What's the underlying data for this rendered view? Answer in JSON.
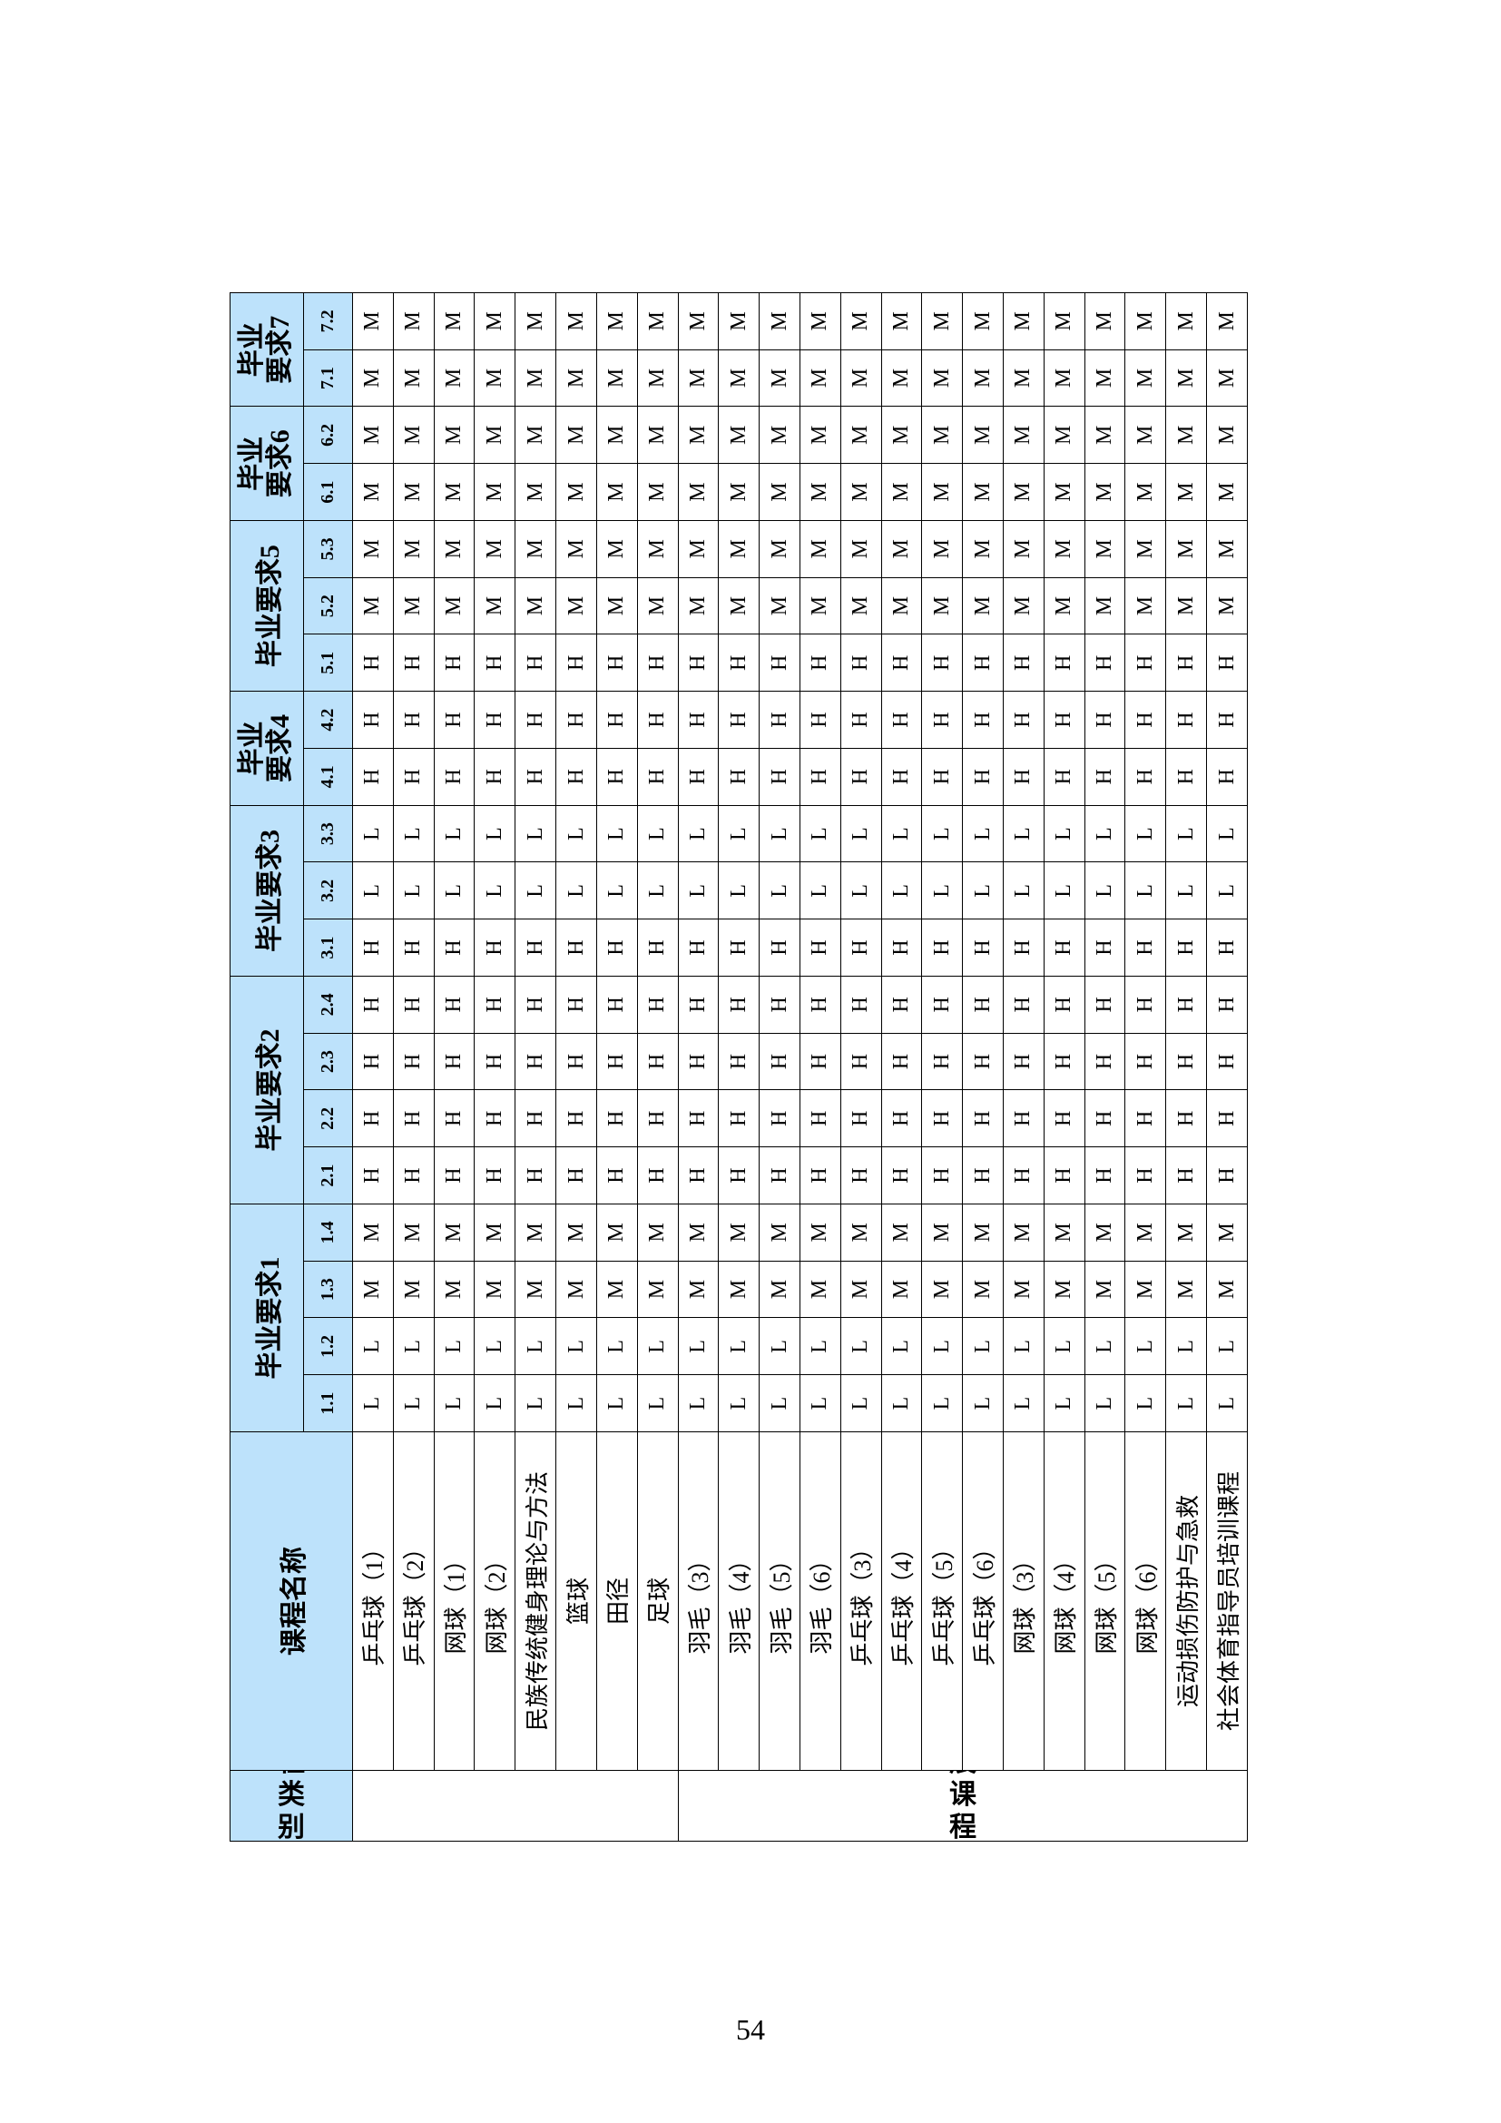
{
  "table": {
    "headers": {
      "category": "课程类别",
      "course": "课程名称",
      "groups": [
        {
          "label": "毕业要求1",
          "indicators": [
            "1.1",
            "1.2",
            "1.3",
            "1.4"
          ]
        },
        {
          "label": "毕业要求2",
          "indicators": [
            "2.1",
            "2.2",
            "2.3",
            "2.4"
          ]
        },
        {
          "label": "毕业要求3",
          "indicators": [
            "3.1",
            "3.2",
            "3.3"
          ]
        },
        {
          "label": "毕业要求4",
          "indicators": [
            "4.1",
            "4.2"
          ]
        },
        {
          "label": "毕业要求5",
          "indicators": [
            "5.1",
            "5.2",
            "5.3"
          ]
        },
        {
          "label": "毕业要求6",
          "indicators": [
            "6.1",
            "6.2"
          ]
        },
        {
          "label": "毕业要求7",
          "indicators": [
            "7.1",
            "7.2"
          ]
        }
      ]
    },
    "sections": [
      {
        "rows": [
          {
            "course": "乒乓球（1）",
            "marks": [
              "L",
              "L",
              "M",
              "M",
              "H",
              "H",
              "H",
              "H",
              "H",
              "L",
              "L",
              "H",
              "H",
              "H",
              "M",
              "M",
              "M",
              "M",
              "M",
              "M"
            ]
          },
          {
            "course": "乒乓球（2）",
            "marks": [
              "L",
              "L",
              "M",
              "M",
              "H",
              "H",
              "H",
              "H",
              "H",
              "L",
              "L",
              "H",
              "H",
              "H",
              "M",
              "M",
              "M",
              "M",
              "M",
              "M"
            ]
          },
          {
            "course": "网球（1）",
            "marks": [
              "L",
              "L",
              "M",
              "M",
              "H",
              "H",
              "H",
              "H",
              "H",
              "L",
              "L",
              "H",
              "H",
              "H",
              "M",
              "M",
              "M",
              "M",
              "M",
              "M"
            ]
          },
          {
            "course": "网球（2）",
            "marks": [
              "L",
              "L",
              "M",
              "M",
              "H",
              "H",
              "H",
              "H",
              "H",
              "L",
              "L",
              "H",
              "H",
              "H",
              "M",
              "M",
              "M",
              "M",
              "M",
              "M"
            ]
          },
          {
            "course": "民族传统健身理论与方法",
            "marks": [
              "L",
              "L",
              "M",
              "M",
              "H",
              "H",
              "H",
              "H",
              "H",
              "L",
              "L",
              "H",
              "H",
              "H",
              "M",
              "M",
              "M",
              "M",
              "M",
              "M"
            ]
          },
          {
            "course": "篮球",
            "marks": [
              "L",
              "L",
              "M",
              "M",
              "H",
              "H",
              "H",
              "H",
              "H",
              "L",
              "L",
              "H",
              "H",
              "H",
              "M",
              "M",
              "M",
              "M",
              "M",
              "M"
            ]
          },
          {
            "course": "田径",
            "marks": [
              "L",
              "L",
              "M",
              "M",
              "H",
              "H",
              "H",
              "H",
              "H",
              "L",
              "L",
              "H",
              "H",
              "H",
              "M",
              "M",
              "M",
              "M",
              "M",
              "M"
            ]
          },
          {
            "course": "足球",
            "marks": [
              "L",
              "L",
              "M",
              "M",
              "H",
              "H",
              "H",
              "H",
              "H",
              "L",
              "L",
              "H",
              "H",
              "H",
              "M",
              "M",
              "M",
              "M",
              "M",
              "M"
            ]
          }
        ]
      },
      {
        "category": "专业自主发展课程",
        "rows": [
          {
            "course": "羽毛（3）",
            "marks": [
              "L",
              "L",
              "M",
              "M",
              "H",
              "H",
              "H",
              "H",
              "H",
              "L",
              "L",
              "H",
              "H",
              "H",
              "M",
              "M",
              "M",
              "M",
              "M",
              "M"
            ]
          },
          {
            "course": "羽毛（4）",
            "marks": [
              "L",
              "L",
              "M",
              "M",
              "H",
              "H",
              "H",
              "H",
              "H",
              "L",
              "L",
              "H",
              "H",
              "H",
              "M",
              "M",
              "M",
              "M",
              "M",
              "M"
            ]
          },
          {
            "course": "羽毛（5）",
            "marks": [
              "L",
              "L",
              "M",
              "M",
              "H",
              "H",
              "H",
              "H",
              "H",
              "L",
              "L",
              "H",
              "H",
              "H",
              "M",
              "M",
              "M",
              "M",
              "M",
              "M"
            ]
          },
          {
            "course": "羽毛（6）",
            "marks": [
              "L",
              "L",
              "M",
              "M",
              "H",
              "H",
              "H",
              "H",
              "H",
              "L",
              "L",
              "H",
              "H",
              "H",
              "M",
              "M",
              "M",
              "M",
              "M",
              "M"
            ]
          },
          {
            "course": "乒乓球（3）",
            "marks": [
              "L",
              "L",
              "M",
              "M",
              "H",
              "H",
              "H",
              "H",
              "H",
              "L",
              "L",
              "H",
              "H",
              "H",
              "M",
              "M",
              "M",
              "M",
              "M",
              "M"
            ]
          },
          {
            "course": "乒乓球（4）",
            "marks": [
              "L",
              "L",
              "M",
              "M",
              "H",
              "H",
              "H",
              "H",
              "H",
              "L",
              "L",
              "H",
              "H",
              "H",
              "M",
              "M",
              "M",
              "M",
              "M",
              "M"
            ]
          },
          {
            "course": "乒乓球（5）",
            "marks": [
              "L",
              "L",
              "M",
              "M",
              "H",
              "H",
              "H",
              "H",
              "H",
              "L",
              "L",
              "H",
              "H",
              "H",
              "M",
              "M",
              "M",
              "M",
              "M",
              "M"
            ]
          },
          {
            "course": "乒乓球（6）",
            "marks": [
              "L",
              "L",
              "M",
              "M",
              "H",
              "H",
              "H",
              "H",
              "H",
              "L",
              "L",
              "H",
              "H",
              "H",
              "M",
              "M",
              "M",
              "M",
              "M",
              "M"
            ]
          },
          {
            "course": "网球（3）",
            "marks": [
              "L",
              "L",
              "M",
              "M",
              "H",
              "H",
              "H",
              "H",
              "H",
              "L",
              "L",
              "H",
              "H",
              "H",
              "M",
              "M",
              "M",
              "M",
              "M",
              "M"
            ]
          },
          {
            "course": "网球（4）",
            "marks": [
              "L",
              "L",
              "M",
              "M",
              "H",
              "H",
              "H",
              "H",
              "H",
              "L",
              "L",
              "H",
              "H",
              "H",
              "M",
              "M",
              "M",
              "M",
              "M",
              "M"
            ]
          },
          {
            "course": "网球（5）",
            "marks": [
              "L",
              "L",
              "M",
              "M",
              "H",
              "H",
              "H",
              "H",
              "H",
              "L",
              "L",
              "H",
              "H",
              "H",
              "M",
              "M",
              "M",
              "M",
              "M",
              "M"
            ]
          },
          {
            "course": "网球（6）",
            "marks": [
              "L",
              "L",
              "M",
              "M",
              "H",
              "H",
              "H",
              "H",
              "H",
              "L",
              "L",
              "H",
              "H",
              "H",
              "M",
              "M",
              "M",
              "M",
              "M",
              "M"
            ]
          },
          {
            "course": "运动损伤防护与急救",
            "marks": [
              "L",
              "L",
              "M",
              "M",
              "H",
              "H",
              "H",
              "H",
              "H",
              "L",
              "L",
              "H",
              "H",
              "H",
              "M",
              "M",
              "M",
              "M",
              "M",
              "M"
            ]
          },
          {
            "course": "社会体育指导员培训课程",
            "marks": [
              "L",
              "L",
              "M",
              "M",
              "H",
              "H",
              "H",
              "H",
              "H",
              "L",
              "L",
              "H",
              "H",
              "H",
              "M",
              "M",
              "M",
              "M",
              "M",
              "M"
            ]
          }
        ]
      }
    ]
  },
  "page": {
    "number": "54"
  }
}
